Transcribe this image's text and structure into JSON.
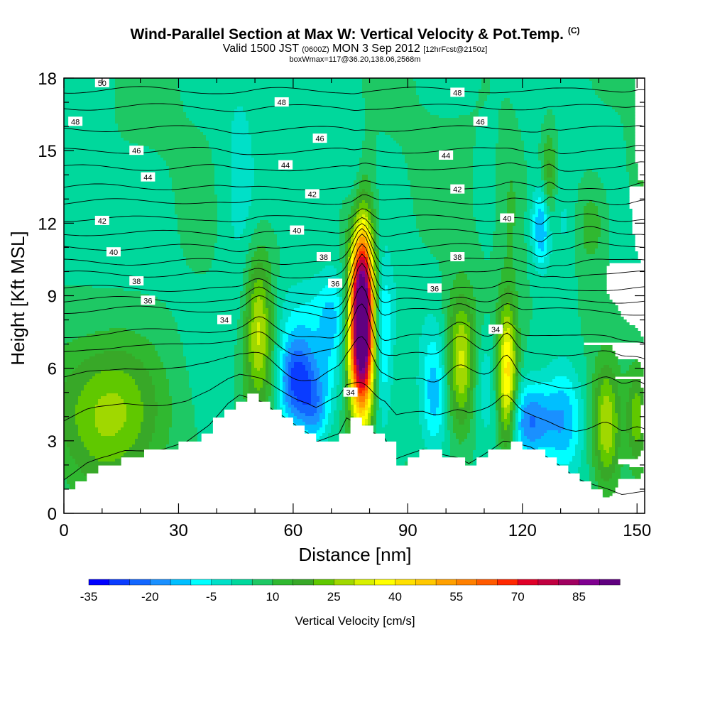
{
  "title": {
    "main": "Wind-Parallel Section at Max W: Vertical Velocity & Pot.Temp.",
    "corner": "(C)",
    "line2_a": "Valid 1500 JST",
    "line2_b": "(0600Z)",
    "line2_c": "MON 3 Sep 2012",
    "line2_d": "[12hrFcst@2150z]",
    "line3": "boxWmax=117@36.20,138.06,2568m"
  },
  "chart_data": {
    "type": "heatmap",
    "xlabel": "Distance [nm]",
    "ylabel": "Height [Kft MSL]",
    "xlim": [
      0,
      152
    ],
    "ylim": [
      0,
      18
    ],
    "x_ticks": [
      "0",
      "30",
      "60",
      "90",
      "120",
      "150"
    ],
    "y_ticks": [
      "0",
      "3",
      "6",
      "9",
      "12",
      "15",
      "18"
    ],
    "colorbar": {
      "title": "Vertical Velocity [cm/s]",
      "tick_labels": [
        "-35",
        "-20",
        "-5",
        "10",
        "25",
        "40",
        "55",
        "70",
        "85"
      ],
      "levels_start": -35,
      "levels_step": 5,
      "colors": [
        "#0000ff",
        "#0a3cff",
        "#1266ff",
        "#1a90ff",
        "#00bfff",
        "#00ffff",
        "#00e0c8",
        "#00d89c",
        "#1ec864",
        "#30b830",
        "#38a828",
        "#60c800",
        "#a0d800",
        "#d8f000",
        "#ffff00",
        "#ffe000",
        "#ffc800",
        "#ffa000",
        "#ff8000",
        "#ff5a00",
        "#ff2800",
        "#e00028",
        "#c00040",
        "#a00060",
        "#800090",
        "#600080"
      ]
    },
    "terrain_profile_nm_kft": [
      [
        0,
        1.0
      ],
      [
        3,
        1.3
      ],
      [
        6,
        1.65
      ],
      [
        12,
        2.0
      ],
      [
        16,
        2.35
      ],
      [
        26,
        2.65
      ],
      [
        32,
        2.95
      ],
      [
        35,
        3.3
      ],
      [
        38,
        3.65
      ],
      [
        40,
        4.0
      ],
      [
        43,
        4.55
      ],
      [
        46,
        4.9
      ],
      [
        52,
        4.6
      ],
      [
        55,
        4.25
      ],
      [
        58,
        3.95
      ],
      [
        61,
        3.6
      ],
      [
        64,
        3.3
      ],
      [
        66,
        2.95
      ],
      [
        72,
        3.3
      ],
      [
        74,
        3.95
      ],
      [
        84,
        3.0
      ],
      [
        87,
        2.0
      ],
      [
        94,
        2.6
      ],
      [
        103,
        2.3
      ],
      [
        106,
        2.0
      ],
      [
        112,
        2.6
      ],
      [
        115,
        2.9
      ],
      [
        122,
        2.6
      ],
      [
        125,
        2.3
      ],
      [
        128,
        2.0
      ],
      [
        131,
        1.7
      ],
      [
        134,
        1.3
      ],
      [
        138,
        1.0
      ],
      [
        142,
        0.65
      ],
      [
        146,
        0.35
      ],
      [
        152,
        0.35
      ]
    ],
    "w_features": [
      {
        "x": 12,
        "y": 4.2,
        "sx": 10,
        "sy": 2.2,
        "w": 22
      },
      {
        "x": 51,
        "y": 8.0,
        "sx": 2.5,
        "sy": 2.0,
        "w": 24
      },
      {
        "x": 52,
        "y": 5.0,
        "sx": 4.0,
        "sy": 2.5,
        "w": 8
      },
      {
        "x": 61,
        "y": 5.5,
        "sx": 4.0,
        "sy": 1.4,
        "w": -34
      },
      {
        "x": 66,
        "y": 4.2,
        "sx": 2.5,
        "sy": 1.0,
        "w": -14
      },
      {
        "x": 67,
        "y": 8.4,
        "sx": 12,
        "sy": 1.2,
        "w": -8
      },
      {
        "x": 78,
        "y": 8.0,
        "sx": 2.3,
        "sy": 2.6,
        "w": 118
      },
      {
        "x": 83,
        "y": 7.0,
        "sx": 2.0,
        "sy": 2.5,
        "w": -18
      },
      {
        "x": 76,
        "y": 13.4,
        "sx": 1.5,
        "sy": 3.0,
        "w": -6
      },
      {
        "x": 70,
        "y": 7.2,
        "sx": 2.5,
        "sy": 1.8,
        "w": -10
      },
      {
        "x": 97,
        "y": 5.0,
        "sx": 2.5,
        "sy": 1.8,
        "w": -16
      },
      {
        "x": 104,
        "y": 6.3,
        "sx": 2.8,
        "sy": 2.0,
        "w": 28
      },
      {
        "x": 110,
        "y": 5.5,
        "sx": 2.5,
        "sy": 1.5,
        "w": -10
      },
      {
        "x": 116,
        "y": 5.6,
        "sx": 1.8,
        "sy": 2.2,
        "w": 38
      },
      {
        "x": 122,
        "y": 3.8,
        "sx": 4.0,
        "sy": 1.1,
        "w": -24
      },
      {
        "x": 131,
        "y": 3.8,
        "sx": 3.5,
        "sy": 1.6,
        "w": -18
      },
      {
        "x": 125,
        "y": 11.8,
        "sx": 1.8,
        "sy": 1.2,
        "w": -22
      },
      {
        "x": 127,
        "y": 13.8,
        "sx": 1.3,
        "sy": 1.5,
        "w": 14
      },
      {
        "x": 131,
        "y": 12.0,
        "sx": 2.5,
        "sy": 1.5,
        "w": -6
      },
      {
        "x": 138,
        "y": 11.9,
        "sx": 3.0,
        "sy": 1.3,
        "w": 10
      },
      {
        "x": 142,
        "y": 3.6,
        "sx": 2.5,
        "sy": 1.8,
        "w": 24
      },
      {
        "x": 150,
        "y": 4.0,
        "sx": 2.0,
        "sy": 1.5,
        "w": 18
      },
      {
        "x": 46,
        "y": 13.2,
        "sx": 3.5,
        "sy": 3.5,
        "w": -7
      },
      {
        "x": 151,
        "y": 16.0,
        "sx": 2.0,
        "sy": 3.0,
        "w": 8
      },
      {
        "x": 117,
        "y": 13.0,
        "sx": 2.0,
        "sy": 2.0,
        "w": 6
      }
    ],
    "isentropes": {
      "levels": [
        30,
        31,
        32,
        33,
        34,
        35,
        36,
        37,
        38,
        39,
        40,
        41,
        42,
        43,
        44,
        45,
        46,
        47,
        48,
        49,
        50,
        51
      ],
      "base_heights_kft": [
        0.5,
        3.0,
        5.0,
        6.3,
        7.1,
        8.3,
        8.8,
        9.3,
        9.9,
        10.4,
        11.0,
        11.6,
        12.2,
        12.9,
        13.5,
        14.3,
        15.0,
        15.9,
        16.8,
        17.5,
        18.3,
        19.0
      ],
      "labels": [
        {
          "text": "50",
          "x": 10,
          "y": 17.8
        },
        {
          "text": "48",
          "x": 3,
          "y": 16.2
        },
        {
          "text": "48",
          "x": 57,
          "y": 17.0
        },
        {
          "text": "48",
          "x": 103,
          "y": 17.4
        },
        {
          "text": "46",
          "x": 19,
          "y": 15.0
        },
        {
          "text": "46",
          "x": 67,
          "y": 15.5
        },
        {
          "text": "46",
          "x": 109,
          "y": 16.2
        },
        {
          "text": "44",
          "x": 22,
          "y": 13.9
        },
        {
          "text": "44",
          "x": 58,
          "y": 14.4
        },
        {
          "text": "44",
          "x": 100,
          "y": 14.8
        },
        {
          "text": "42",
          "x": 10,
          "y": 12.1
        },
        {
          "text": "42",
          "x": 65,
          "y": 13.2
        },
        {
          "text": "42",
          "x": 103,
          "y": 13.4
        },
        {
          "text": "40",
          "x": 13,
          "y": 10.8
        },
        {
          "text": "40",
          "x": 61,
          "y": 11.7
        },
        {
          "text": "40",
          "x": 116,
          "y": 12.2
        },
        {
          "text": "38",
          "x": 19,
          "y": 9.6
        },
        {
          "text": "38",
          "x": 68,
          "y": 10.6
        },
        {
          "text": "38",
          "x": 103,
          "y": 10.6
        },
        {
          "text": "36",
          "x": 22,
          "y": 8.8
        },
        {
          "text": "36",
          "x": 71,
          "y": 9.5
        },
        {
          "text": "36",
          "x": 97,
          "y": 9.3
        },
        {
          "text": "34",
          "x": 42,
          "y": 8.0
        },
        {
          "text": "34",
          "x": 113,
          "y": 7.6
        },
        {
          "text": "34",
          "x": 75,
          "y": 5.0
        }
      ]
    }
  }
}
